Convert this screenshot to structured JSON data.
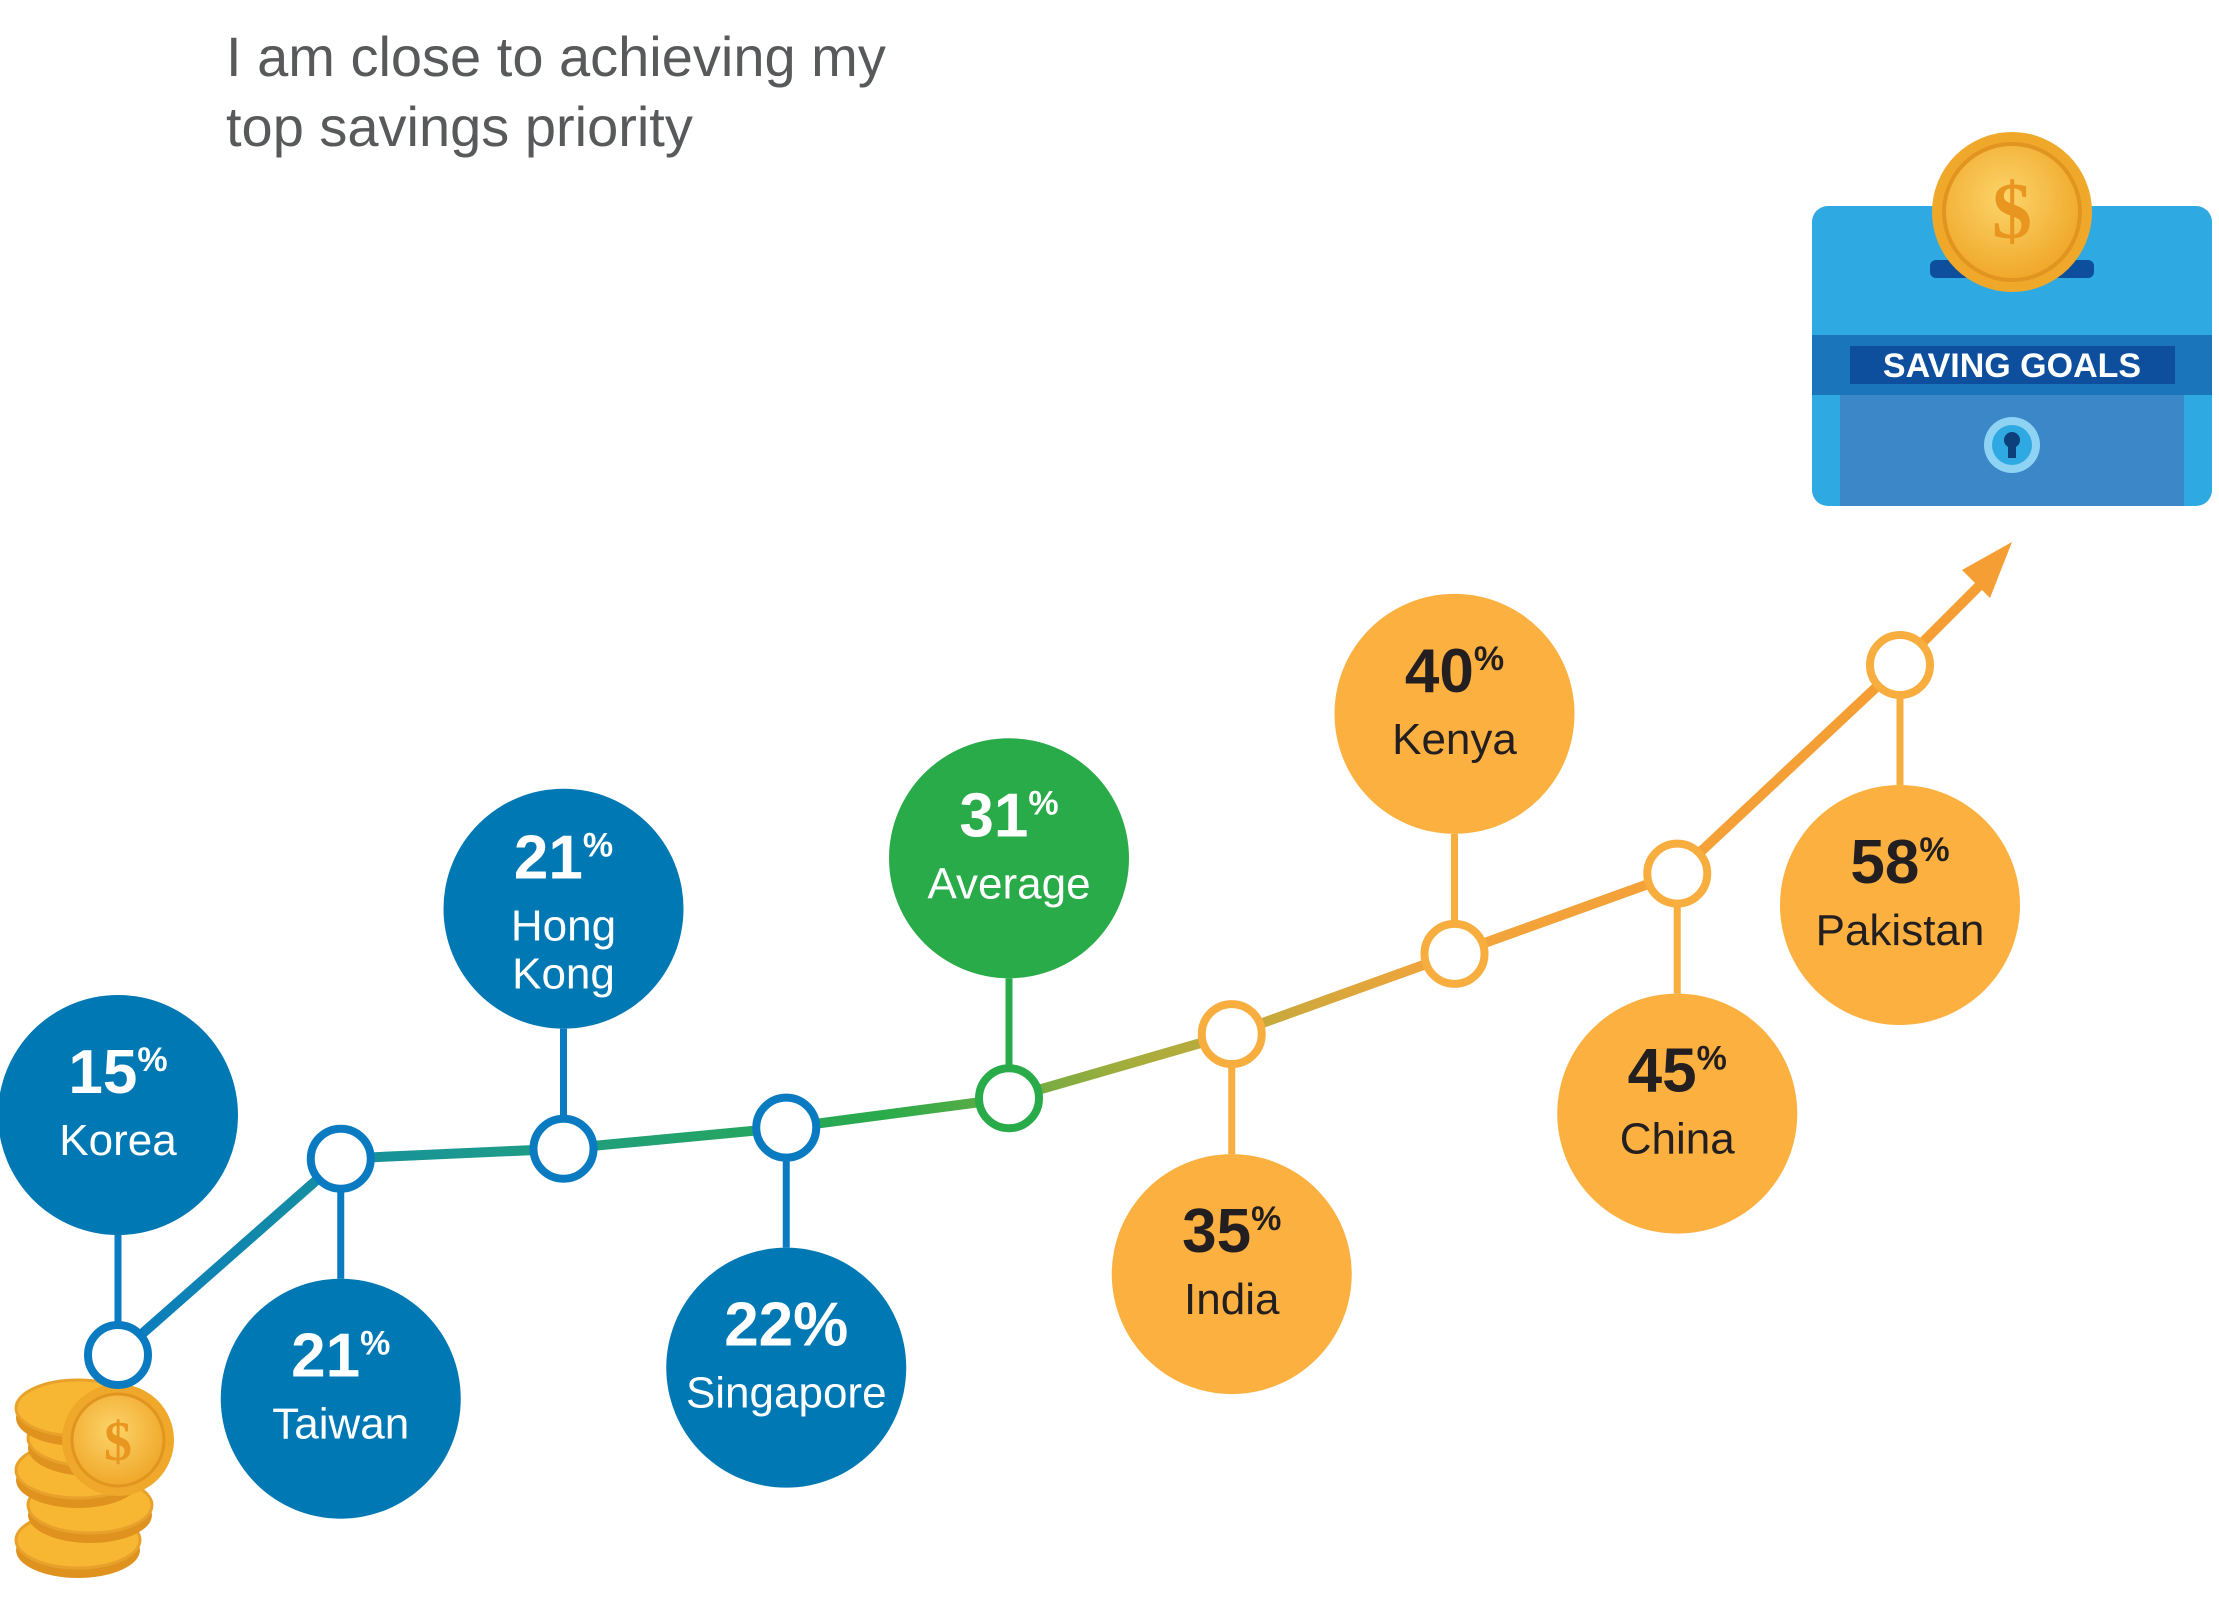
{
  "title_lines": [
    "I am close to achieving my",
    "top savings priority"
  ],
  "colors": {
    "blue": "#0078b4",
    "green": "#2aab4a",
    "orange": "#fbb040",
    "box_top": "#2fa9e1",
    "box_bottom": "#3b87c8",
    "box_band": "#1b75bb",
    "box_label_bg": "#0d4f9c",
    "coin": "#f7b733",
    "arrow": "#f49e33"
  },
  "piggy_box_label": "SAVING GOALS",
  "icons": {
    "coin_stack": "coin-stack-icon",
    "coin": "dollar-coin-icon",
    "keyhole": "keyhole-icon"
  },
  "chart_data": {
    "type": "line",
    "title": "I am close to achieving my top savings priority",
    "categories": [
      "Korea",
      "Taiwan",
      "Hong Kong",
      "Singapore",
      "Average",
      "India",
      "Kenya",
      "China",
      "Pakistan"
    ],
    "label_lines": [
      [
        "Korea"
      ],
      [
        "Taiwan"
      ],
      [
        "Hong",
        "Kong"
      ],
      [
        "Singapore"
      ],
      [
        "Average"
      ],
      [
        "India"
      ],
      [
        "Kenya"
      ],
      [
        "China"
      ],
      [
        "Pakistan"
      ]
    ],
    "values": [
      15,
      21,
      21,
      22,
      31,
      35,
      40,
      45,
      58
    ],
    "value_labels": [
      "15%",
      "21%",
      "21%",
      "22%",
      "31%",
      "35%",
      "40%",
      "45%",
      "58%"
    ],
    "unit_symbol": "%",
    "groups": [
      "blue",
      "blue",
      "blue",
      "blue",
      "green",
      "orange",
      "orange",
      "orange",
      "orange"
    ],
    "bubble_side": [
      "above",
      "below",
      "above",
      "below",
      "above",
      "below",
      "above",
      "below",
      "below"
    ],
    "symbol_style": [
      "super",
      "super",
      "super",
      "inline",
      "super",
      "super",
      "super",
      "super",
      "super"
    ],
    "legend": "none",
    "grid": false
  }
}
